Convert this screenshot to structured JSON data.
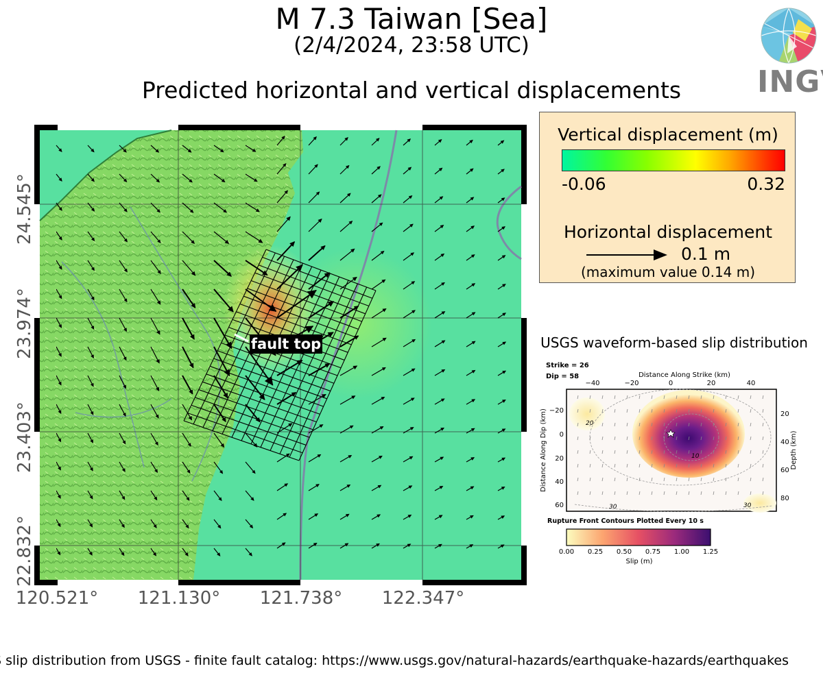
{
  "header": {
    "title": "M 7.3 Taiwan [Sea]",
    "date": "(2/4/2024, 23:58 UTC)",
    "subtitle": "Predicted horizontal and vertical displacements",
    "logo_text": "INGV"
  },
  "map": {
    "lat_labels": [
      "24.545°",
      "23.974°",
      "23.403°",
      "22.832°"
    ],
    "lon_labels": [
      "120.521°",
      "121.130°",
      "121.738°",
      "122.347°"
    ],
    "fault_label": "fault top",
    "colors": {
      "sea": "#58e0a0",
      "land": "#8bd86a",
      "uplift": "#ff6a3a",
      "frame": "#000000"
    }
  },
  "legend": {
    "vertical_title": "Vertical displacement (m)",
    "vertical_min": "-0.06",
    "vertical_max": "0.32",
    "horizontal_title": "Horizontal displacement",
    "horizontal_value": "0.1 m",
    "max_note": "(maximum value 0.14 m)"
  },
  "slip": {
    "title": "USGS waveform-based slip distribution",
    "strike": "Strike = 26",
    "dip": "Dip = 58",
    "x_axis_label": "Distance Along Strike (km)",
    "y_axis_label": "Distance Along Dip (km)",
    "depth_label": "Depth (km)",
    "x_ticks": [
      "−40",
      "−20",
      "0",
      "20",
      "40"
    ],
    "y_ticks": [
      "−20",
      "0",
      "20",
      "40",
      "60"
    ],
    "depth_ticks": [
      "20",
      "40",
      "60",
      "80"
    ],
    "contour_labels": [
      "20",
      "10",
      "30",
      "30"
    ],
    "rupture_note": "Rupture Front Contours Plotted Every 10 s",
    "colorbar_ticks": [
      "0.00",
      "0.25",
      "0.50",
      "0.75",
      "1.00",
      "1.25"
    ],
    "colorbar_label": "Slip (m)"
  },
  "footer": {
    "text": "S slip distribution from USGS - finite fault catalog: https://www.usgs.gov/natural-hazards/earthquake-hazards/earthquakes"
  }
}
